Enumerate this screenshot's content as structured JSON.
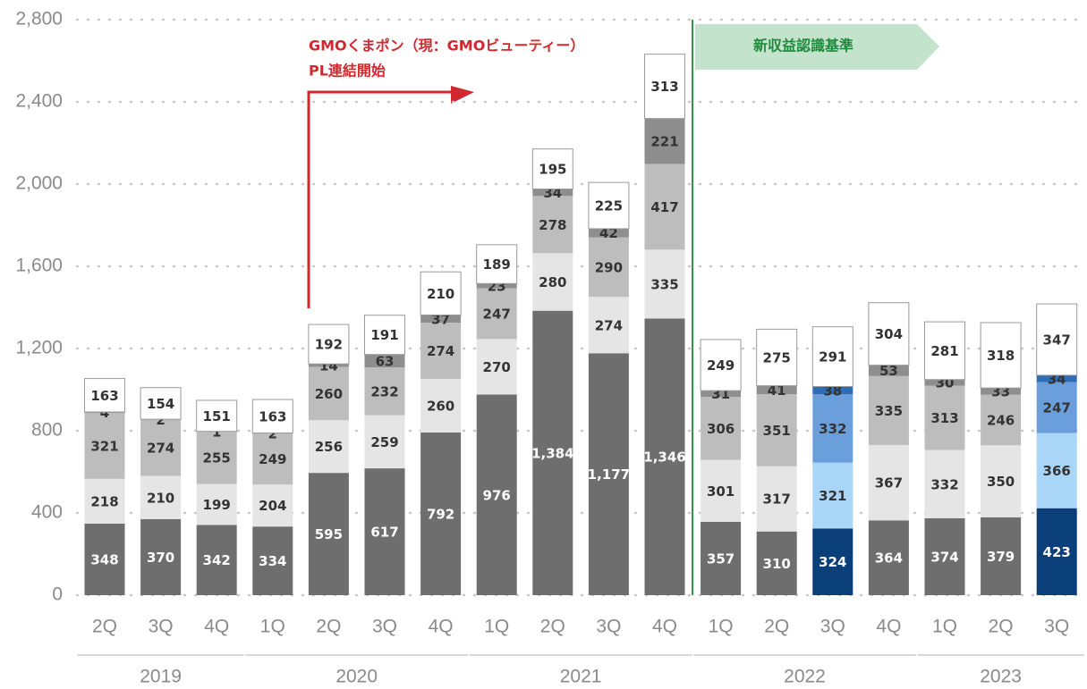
{
  "chart_data": {
    "type": "stacked_bar",
    "categories": [
      "2Q",
      "3Q",
      "4Q",
      "1Q",
      "2Q",
      "3Q",
      "4Q",
      "1Q",
      "2Q",
      "3Q",
      "4Q",
      "1Q",
      "2Q",
      "3Q",
      "4Q",
      "1Q",
      "2Q",
      "3Q"
    ],
    "groups": [
      {
        "label": "2019",
        "count": 3
      },
      {
        "label": "2020",
        "count": 4
      },
      {
        "label": "2021",
        "count": 4
      },
      {
        "label": "2022",
        "count": 4
      },
      {
        "label": "2023",
        "count": 3
      }
    ],
    "highlight": [
      13,
      17
    ],
    "series": [
      {
        "color": "#6e6e6e",
        "highlight_color": "#0b3f7a",
        "label_color": "#ffffff",
        "values": [
          348,
          370,
          342,
          334,
          595,
          617,
          792,
          976,
          1384,
          1177,
          1346,
          357,
          310,
          324,
          364,
          374,
          379,
          423
        ],
        "value_labels": [
          "348",
          "370",
          "342",
          "334",
          "595",
          "617",
          "792",
          "976",
          "1,384",
          "1,177",
          "1,346",
          "357",
          "310",
          "324",
          "364",
          "374",
          "379",
          "423"
        ]
      },
      {
        "color": "#e5e5e5",
        "highlight_color": "#a9d5f6",
        "label_color": "#333333",
        "values": [
          218,
          210,
          199,
          204,
          256,
          259,
          260,
          270,
          280,
          274,
          335,
          301,
          317,
          321,
          367,
          332,
          350,
          366
        ]
      },
      {
        "color": "#bdbdbd",
        "highlight_color": "#6b9fdc",
        "label_color": "#333333",
        "values": [
          321,
          274,
          255,
          249,
          260,
          232,
          274,
          247,
          278,
          290,
          417,
          306,
          351,
          332,
          335,
          313,
          246,
          247
        ]
      },
      {
        "color": "#8e8e8e",
        "highlight_color": "#2f6db5",
        "label_color": "#333333",
        "values": [
          4,
          2,
          1,
          2,
          14,
          63,
          37,
          23,
          34,
          42,
          221,
          31,
          41,
          38,
          53,
          30,
          33,
          34
        ]
      },
      {
        "color": "#ffffff",
        "highlight_color": "#ffffff",
        "label_color": "#333333",
        "values": [
          163,
          154,
          151,
          163,
          192,
          191,
          210,
          189,
          195,
          225,
          313,
          249,
          275,
          291,
          304,
          281,
          318,
          347
        ]
      }
    ],
    "ylim": [
      0,
      2800
    ],
    "yticks": [
      0,
      400,
      800,
      {
        "value": 1200,
        "label": "1,200"
      },
      {
        "value": 1600,
        "label": "1,600"
      },
      {
        "value": 2000,
        "label": "2,000"
      },
      {
        "value": 2400,
        "label": "2,400"
      },
      {
        "value": 2800,
        "label": "2,800"
      }
    ],
    "grid": true,
    "annotations": [
      "GMOくまポン（現：GMOビューティー）",
      "PL連結開始",
      "新収益認識基準"
    ]
  }
}
